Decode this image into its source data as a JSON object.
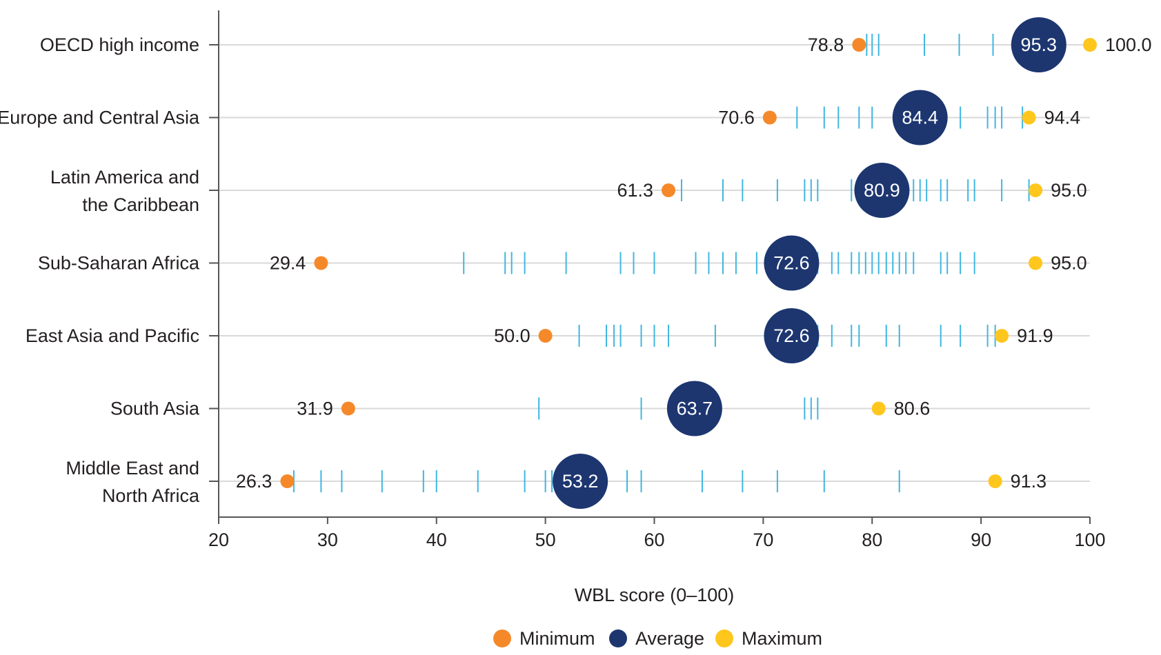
{
  "chart_data": {
    "type": "dot-range",
    "xlabel": "WBL score (0–100)",
    "xlim": [
      20,
      100
    ],
    "xticks": [
      20,
      30,
      40,
      50,
      60,
      70,
      80,
      90,
      100
    ],
    "legend": [
      {
        "key": "min",
        "label": "Minimum",
        "color": "#f5892a"
      },
      {
        "key": "avg",
        "label": "Average",
        "color": "#1d3670"
      },
      {
        "key": "max",
        "label": "Maximum",
        "color": "#ffc61e"
      }
    ],
    "legend_position": "bottom-center",
    "colors": {
      "economy_tick": "#3fb6e0",
      "gridline": "#d9d9d9",
      "axis": "#555555"
    },
    "regions": [
      {
        "name": "OECD high income",
        "min": 78.8,
        "min_label": "78.8",
        "avg": 95.3,
        "avg_label": "95.3",
        "max": 100.0,
        "max_label": "100.0",
        "economies": [
          79.5,
          80.0,
          80.6,
          84.8,
          88.0,
          91.1,
          93.8,
          94.4,
          96.9,
          97.5
        ]
      },
      {
        "name": "Europe and Central Asia",
        "min": 70.6,
        "min_label": "70.6",
        "avg": 84.4,
        "avg_label": "84.4",
        "max": 94.4,
        "max_label": "94.4",
        "economies": [
          73.1,
          75.6,
          76.9,
          78.8,
          80.0,
          82.5,
          86.3,
          88.1,
          90.6,
          91.3,
          91.9,
          93.8
        ]
      },
      {
        "name": "Latin America and the Caribbean",
        "min": 61.3,
        "min_label": "61.3",
        "avg": 80.9,
        "avg_label": "80.9",
        "max": 95.0,
        "max_label": "95.0",
        "economies": [
          62.5,
          66.3,
          68.1,
          71.3,
          73.8,
          74.4,
          75.0,
          78.1,
          79.4,
          83.8,
          84.4,
          85.0,
          86.3,
          86.9,
          88.8,
          89.4,
          91.9,
          94.4
        ]
      },
      {
        "name": "Sub-Saharan Africa",
        "min": 29.4,
        "min_label": "29.4",
        "avg": 72.6,
        "avg_label": "72.6",
        "max": 95.0,
        "max_label": "95.0",
        "economies": [
          42.5,
          46.3,
          46.9,
          48.1,
          51.9,
          56.9,
          58.1,
          60.0,
          63.8,
          65.0,
          66.3,
          67.5,
          69.4,
          71.3,
          75.0,
          76.3,
          76.9,
          78.1,
          78.8,
          79.4,
          80.0,
          80.6,
          81.3,
          81.9,
          82.5,
          83.1,
          83.8,
          86.3,
          86.9,
          88.1,
          89.4
        ]
      },
      {
        "name": "East Asia and Pacific",
        "min": 50.0,
        "min_label": "50.0",
        "avg": 72.6,
        "avg_label": "72.6",
        "max": 91.9,
        "max_label": "91.9",
        "economies": [
          53.1,
          55.6,
          56.3,
          56.9,
          58.8,
          60.0,
          61.3,
          65.6,
          71.3,
          75.0,
          76.3,
          78.1,
          78.8,
          81.3,
          82.5,
          86.3,
          88.1,
          90.6,
          91.3
        ]
      },
      {
        "name": "South Asia",
        "min": 31.9,
        "min_label": "31.9",
        "avg": 63.7,
        "avg_label": "63.7",
        "max": 80.6,
        "max_label": "80.6",
        "economies": [
          49.4,
          58.8,
          73.8,
          74.4,
          75.0
        ]
      },
      {
        "name": "Middle East and North Africa",
        "min": 26.3,
        "min_label": "26.3",
        "avg": 53.2,
        "avg_label": "53.2",
        "max": 91.3,
        "max_label": "91.3",
        "economies": [
          26.9,
          29.4,
          31.3,
          35.0,
          38.8,
          40.0,
          43.8,
          48.1,
          50.0,
          50.6,
          57.5,
          58.8,
          64.4,
          68.1,
          71.3,
          75.6,
          82.5
        ]
      }
    ]
  }
}
